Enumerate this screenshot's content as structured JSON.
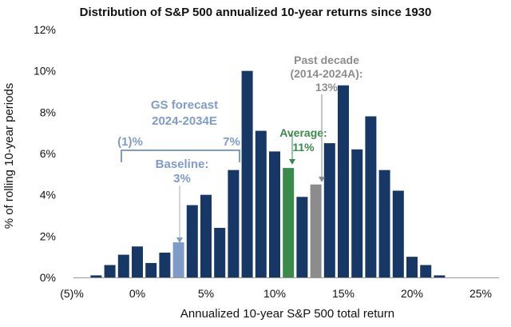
{
  "chart_data": {
    "type": "bar",
    "title": "Distribution of S&P 500 annualized 10-year returns since 1930",
    "xlabel": "Annualized 10-year S&P 500 total return",
    "ylabel": "% of rolling 10-year periods",
    "xlim": [
      -5,
      25
    ],
    "ylim": [
      0,
      12
    ],
    "xticks": [
      -5,
      0,
      5,
      10,
      15,
      20,
      25
    ],
    "xtick_labels": [
      "(5)%",
      "0%",
      "5%",
      "10%",
      "15%",
      "20%",
      "25%"
    ],
    "yticks": [
      0,
      2,
      4,
      6,
      8,
      10,
      12
    ],
    "ytick_labels": [
      "0%",
      "2%",
      "4%",
      "6%",
      "8%",
      "10%",
      "12%"
    ],
    "grid": false,
    "x": [
      -3,
      -2,
      -1,
      0,
      1,
      2,
      3,
      4,
      5,
      6,
      7,
      8,
      9,
      10,
      11,
      12,
      13,
      14,
      15,
      16,
      17,
      18,
      19,
      20,
      21,
      22
    ],
    "values": [
      0.1,
      0.6,
      1.1,
      1.5,
      0.7,
      1.2,
      1.7,
      3.5,
      4.0,
      2.4,
      5.2,
      10.0,
      7.1,
      6.1,
      5.3,
      3.9,
      4.5,
      6.5,
      9.3,
      6.2,
      7.8,
      5.2,
      4.2,
      1.0,
      0.6,
      0.1
    ],
    "highlights": {
      "3": "#7f9cc8",
      "11": "#3a8a4a",
      "13": "#8c8c8c"
    },
    "colors": {
      "bar": "#173766",
      "forecast": "#7f9cc8",
      "average": "#3a8a4a",
      "past": "#8c8c8c"
    },
    "annotations": {
      "forecast_title_1": "GS forecast",
      "forecast_title_2": "2024-2034E",
      "range_low": "(1)%",
      "range_high": "7%",
      "baseline_1": "Baseline:",
      "baseline_2": "3%",
      "average_1": "Average:",
      "average_2": "11%",
      "past_1": "Past decade",
      "past_2": "(2014-2024A):",
      "past_3": "13%"
    }
  }
}
